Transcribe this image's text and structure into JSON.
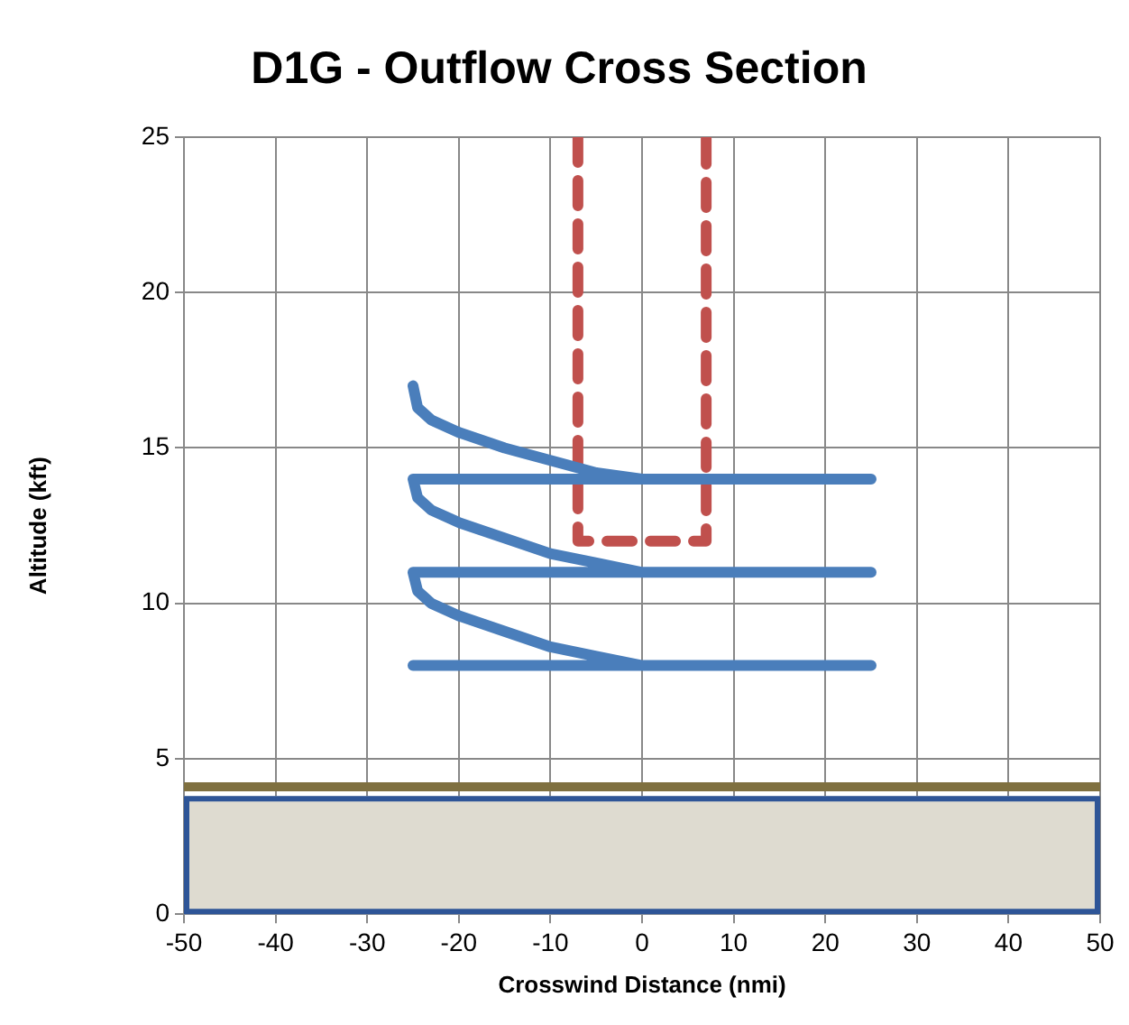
{
  "chart_data": {
    "type": "line",
    "title": "D1G - Outflow Cross Section",
    "xlabel": "Crosswind Distance (nmi)",
    "ylabel": "Altitude (kft)",
    "series": [
      {
        "color": "#4a7ebb",
        "line_style": "solid",
        "x": [
          -25,
          -24.5,
          -23,
          -20,
          -15,
          -10,
          -5,
          0,
          25,
          -25,
          -24.5,
          -23,
          -20,
          -15,
          -10,
          -5,
          0,
          25,
          -25,
          -24.5,
          -23,
          -20,
          -15,
          -10,
          -5,
          0,
          25,
          -25
        ],
        "values": [
          17,
          16.3,
          15.9,
          15.5,
          15,
          14.6,
          14.2,
          14,
          14,
          14,
          13.4,
          13,
          12.6,
          12.1,
          11.6,
          11.3,
          11,
          11,
          11,
          10.4,
          10,
          9.6,
          9.1,
          8.6,
          8.3,
          8,
          8,
          8
        ]
      },
      {
        "color": "#c0504d",
        "line_style": "dashed",
        "x": [
          -7,
          -7,
          7,
          7
        ],
        "values": [
          25,
          12,
          12,
          25
        ]
      }
    ],
    "xlim": [
      -50,
      50
    ],
    "ylim": [
      0,
      25
    ],
    "xticks": [
      -50,
      -40,
      -30,
      -20,
      -10,
      0,
      10,
      20,
      30,
      40,
      50
    ],
    "yticks": [
      0,
      5,
      10,
      15,
      20,
      25
    ],
    "grid": true,
    "bands": [
      {
        "axis": "y",
        "from": 0,
        "to": 3.8,
        "color": "#dedbd0"
      }
    ],
    "ref_lines": [
      {
        "axis": "y",
        "value": 4.1,
        "color": "#7f7040"
      }
    ]
  }
}
